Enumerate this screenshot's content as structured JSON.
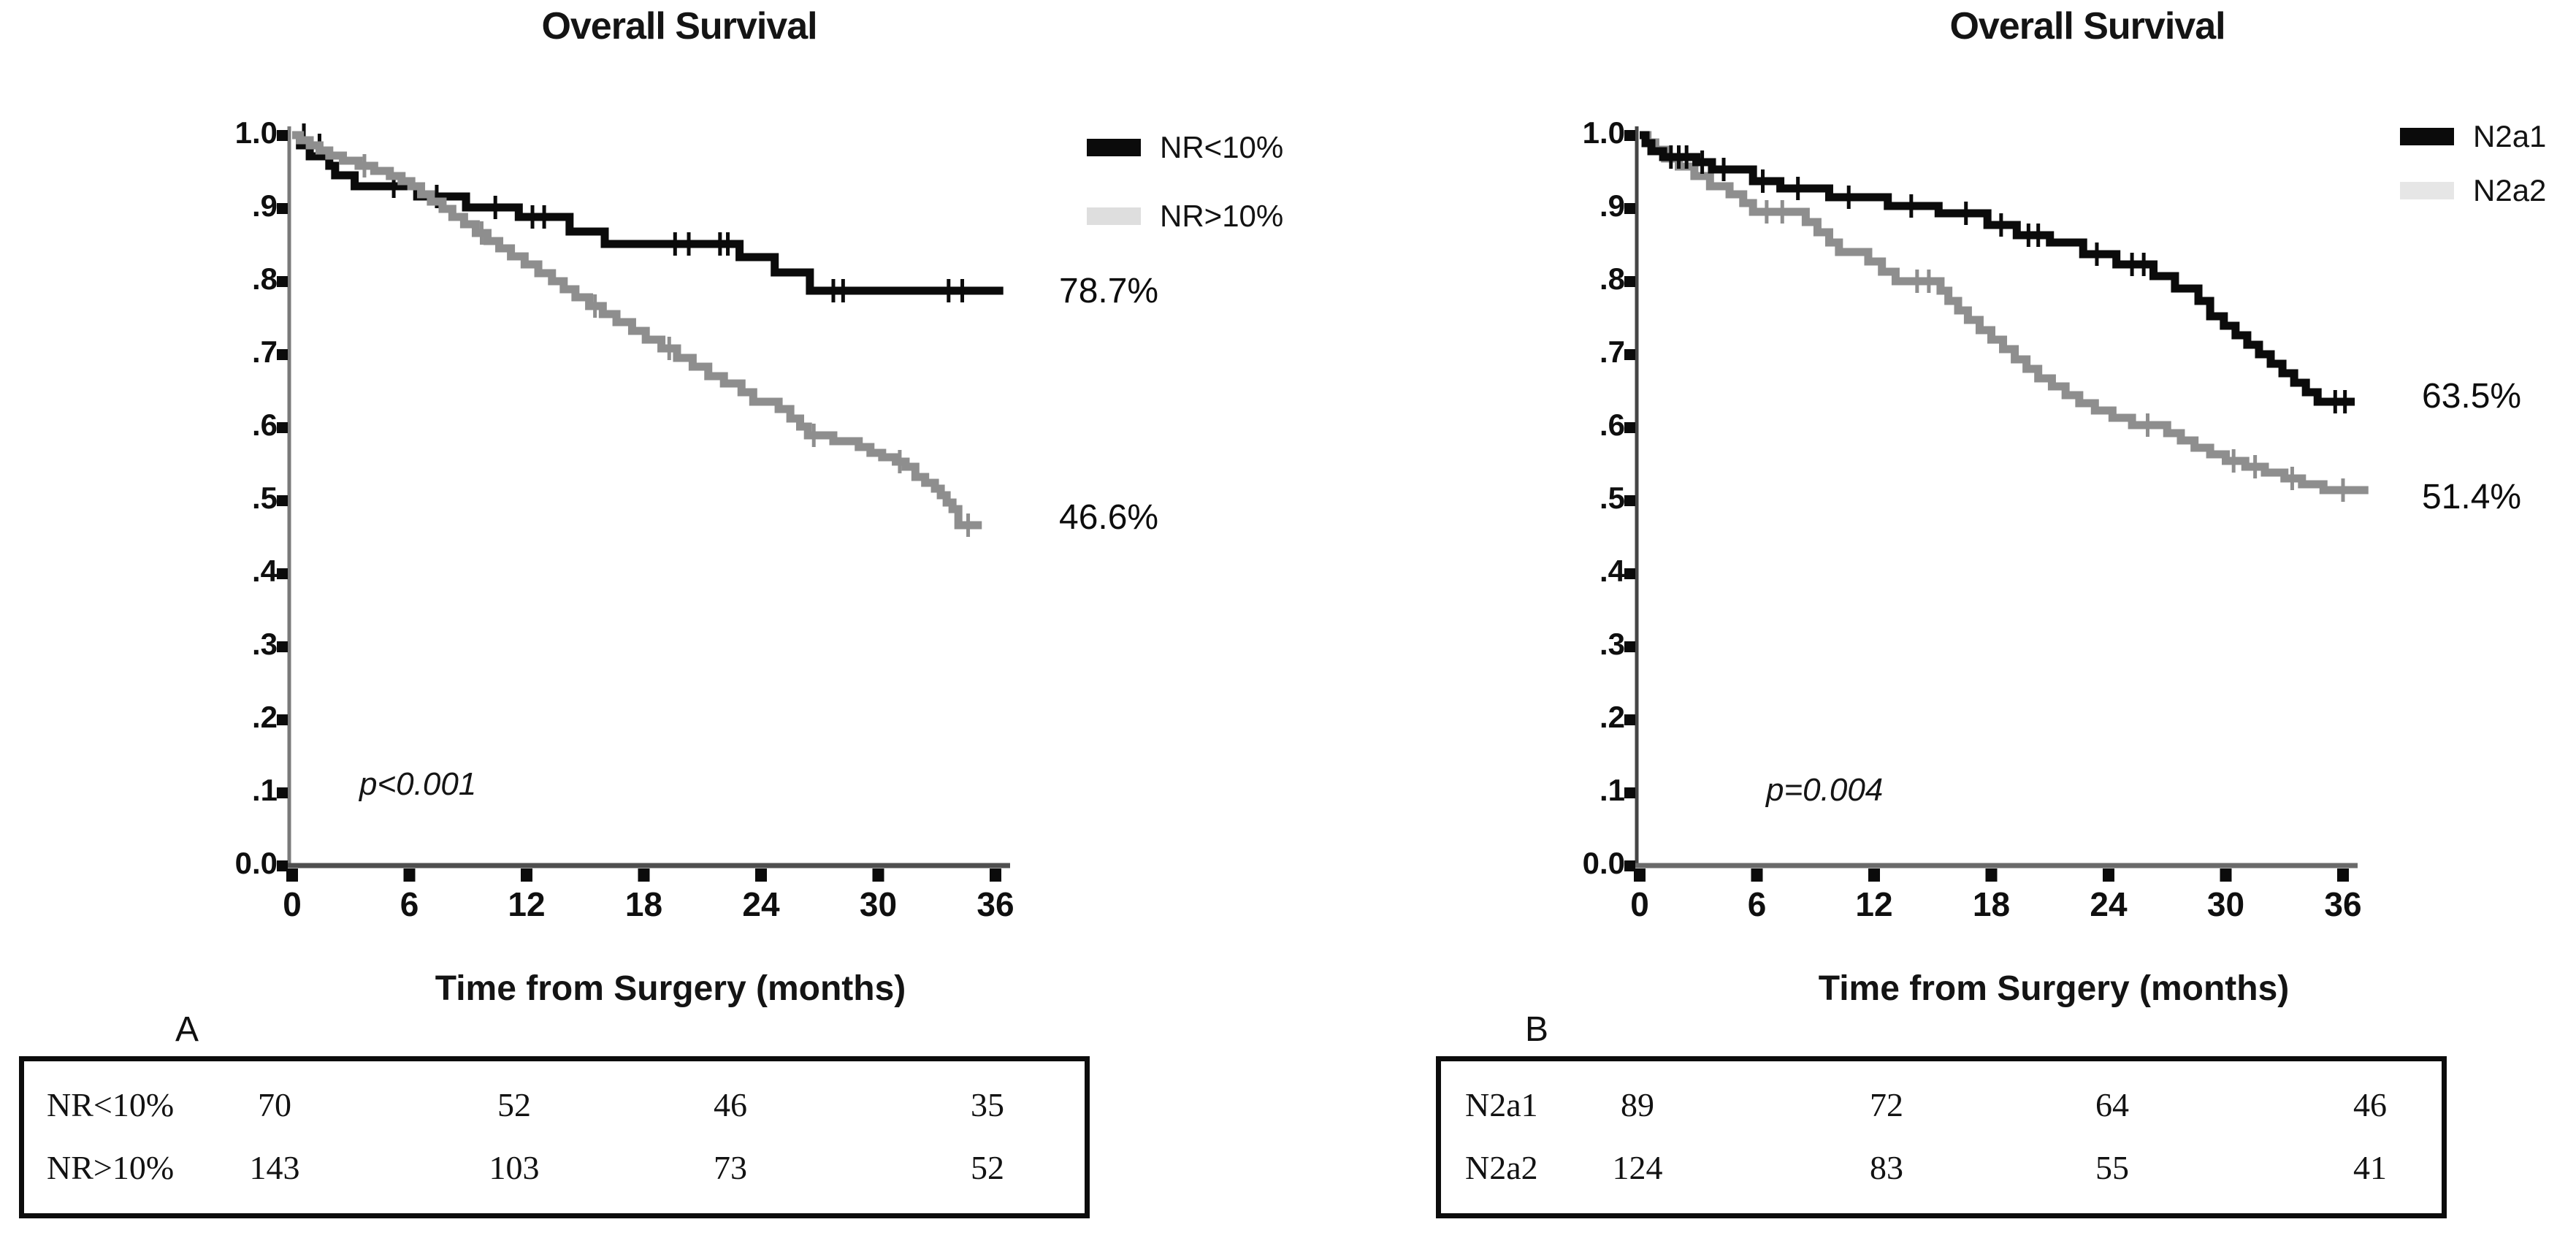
{
  "chart_data": [
    {
      "type": "line",
      "chart_style": "kaplan-meier-step",
      "panel_letter": "A",
      "title": "Overall Survival",
      "xlabel": "Time from Surgery (months)",
      "x_ticks": [
        0,
        6,
        12,
        18,
        24,
        30,
        36
      ],
      "y_tick_labels": [
        "1.0",
        ".9",
        ".8",
        ".7",
        ".6",
        ".5",
        ".4",
        ".3",
        ".2",
        ".1",
        "0.0"
      ],
      "xlim": [
        0,
        37
      ],
      "ylim": [
        0,
        1
      ],
      "grid": false,
      "legend_position": "top-right",
      "p_value": "p<0.001",
      "legend": [
        {
          "name": "NR<10%",
          "swatch_color": "#0b0b0b"
        },
        {
          "name": "NR>10%",
          "swatch_color": "#dedede"
        }
      ],
      "end_labels": [
        {
          "series": "NR<10%",
          "text": "78.7%",
          "value": 0.787
        },
        {
          "series": "NR>10%",
          "text": "46.6%",
          "value": 0.466
        }
      ],
      "series": [
        {
          "name": "NR<10%",
          "color": "#0b0b0b",
          "end_t": 36.4,
          "steps": [
            [
              0,
              1.0
            ],
            [
              0.4,
              0.986
            ],
            [
              0.9,
              0.971
            ],
            [
              1.9,
              0.958
            ],
            [
              2.2,
              0.945
            ],
            [
              3.2,
              0.93
            ],
            [
              6.4,
              0.916
            ],
            [
              8.9,
              0.901
            ],
            [
              11.6,
              0.888
            ],
            [
              14.2,
              0.868
            ],
            [
              16.0,
              0.851
            ],
            [
              22.9,
              0.833
            ],
            [
              24.7,
              0.812
            ],
            [
              26.5,
              0.787
            ]
          ],
          "censors": [
            [
              0.6,
              1.0
            ],
            [
              1.4,
              0.986
            ],
            [
              5.2,
              0.93
            ],
            [
              7.4,
              0.916
            ],
            [
              10.4,
              0.901
            ],
            [
              12.3,
              0.888
            ],
            [
              12.9,
              0.888
            ],
            [
              19.6,
              0.851
            ],
            [
              20.3,
              0.851
            ],
            [
              21.9,
              0.851
            ],
            [
              22.3,
              0.851
            ],
            [
              27.7,
              0.787
            ],
            [
              28.2,
              0.787
            ],
            [
              33.6,
              0.787
            ],
            [
              34.3,
              0.787
            ]
          ]
        },
        {
          "name": "NR>10%",
          "color": "#8e8e8e",
          "end_t": 35.3,
          "steps": [
            [
              0,
              1.0
            ],
            [
              0.4,
              0.993
            ],
            [
              0.9,
              0.986
            ],
            [
              1.4,
              0.979
            ],
            [
              1.9,
              0.972
            ],
            [
              2.6,
              0.965
            ],
            [
              3.4,
              0.958
            ],
            [
              4.2,
              0.951
            ],
            [
              5.0,
              0.944
            ],
            [
              5.6,
              0.937
            ],
            [
              6.1,
              0.93
            ],
            [
              6.6,
              0.919
            ],
            [
              7.1,
              0.909
            ],
            [
              7.7,
              0.899
            ],
            [
              8.2,
              0.888
            ],
            [
              8.8,
              0.878
            ],
            [
              9.4,
              0.866
            ],
            [
              10.0,
              0.855
            ],
            [
              10.6,
              0.845
            ],
            [
              11.2,
              0.834
            ],
            [
              11.9,
              0.823
            ],
            [
              12.6,
              0.811
            ],
            [
              13.3,
              0.8
            ],
            [
              13.9,
              0.789
            ],
            [
              14.5,
              0.778
            ],
            [
              15.2,
              0.766
            ],
            [
              15.9,
              0.755
            ],
            [
              16.6,
              0.744
            ],
            [
              17.4,
              0.732
            ],
            [
              18.1,
              0.72
            ],
            [
              18.9,
              0.708
            ],
            [
              19.7,
              0.695
            ],
            [
              20.5,
              0.683
            ],
            [
              21.3,
              0.67
            ],
            [
              22.1,
              0.66
            ],
            [
              23.0,
              0.648
            ],
            [
              23.6,
              0.635
            ],
            [
              24.9,
              0.625
            ],
            [
              25.5,
              0.612
            ],
            [
              26.0,
              0.601
            ],
            [
              26.4,
              0.589
            ],
            [
              27.7,
              0.581
            ],
            [
              29.0,
              0.573
            ],
            [
              29.6,
              0.565
            ],
            [
              30.2,
              0.559
            ],
            [
              30.9,
              0.553
            ],
            [
              31.4,
              0.546
            ],
            [
              31.9,
              0.532
            ],
            [
              32.4,
              0.524
            ],
            [
              32.9,
              0.516
            ],
            [
              33.2,
              0.507
            ],
            [
              33.5,
              0.497
            ],
            [
              33.8,
              0.488
            ],
            [
              34.1,
              0.466
            ]
          ],
          "censors": [
            [
              3.7,
              0.958
            ],
            [
              9.7,
              0.866
            ],
            [
              15.5,
              0.766
            ],
            [
              19.3,
              0.708
            ],
            [
              26.7,
              0.589
            ],
            [
              31.1,
              0.553
            ],
            [
              34.6,
              0.466
            ]
          ]
        }
      ],
      "risk_table": {
        "rows": [
          {
            "label": "NR<10%",
            "values": [
              70,
              52,
              46,
              35
            ]
          },
          {
            "label": "NR>10%",
            "values": [
              143,
              103,
              73,
              52
            ]
          }
        ]
      }
    },
    {
      "type": "line",
      "chart_style": "kaplan-meier-step",
      "panel_letter": "B",
      "title": "Overall Survival",
      "xlabel": "Time from Surgery (months)",
      "x_ticks": [
        0,
        6,
        12,
        18,
        24,
        30,
        36
      ],
      "y_tick_labels": [
        "1.0",
        ".9",
        ".8",
        ".7",
        ".6",
        ".5",
        ".4",
        ".3",
        ".2",
        ".1",
        "0.0"
      ],
      "xlim": [
        0,
        37
      ],
      "ylim": [
        0,
        1
      ],
      "grid": false,
      "legend_position": "top-right",
      "p_value": "p=0.004",
      "legend": [
        {
          "name": "N2a1",
          "swatch_color": "#0b0b0b"
        },
        {
          "name": "N2a2",
          "swatch_color": "#e6e6e6"
        }
      ],
      "end_labels": [
        {
          "series": "N2a1",
          "text": "63.5%",
          "value": 0.635
        },
        {
          "series": "N2a2",
          "text": "51.4%",
          "value": 0.514
        }
      ],
      "series": [
        {
          "name": "N2a1",
          "color": "#0b0b0b",
          "end_t": 36.6,
          "steps": [
            [
              0,
              1.0
            ],
            [
              0.3,
              0.989
            ],
            [
              0.6,
              0.978
            ],
            [
              1.2,
              0.97
            ],
            [
              2.9,
              0.963
            ],
            [
              3.7,
              0.953
            ],
            [
              5.8,
              0.937
            ],
            [
              7.2,
              0.927
            ],
            [
              9.7,
              0.915
            ],
            [
              12.7,
              0.903
            ],
            [
              15.3,
              0.893
            ],
            [
              17.8,
              0.877
            ],
            [
              19.3,
              0.863
            ],
            [
              21.0,
              0.853
            ],
            [
              22.7,
              0.837
            ],
            [
              24.4,
              0.823
            ],
            [
              26.3,
              0.807
            ],
            [
              27.4,
              0.79
            ],
            [
              28.6,
              0.773
            ],
            [
              29.2,
              0.752
            ],
            [
              29.9,
              0.739
            ],
            [
              30.5,
              0.726
            ],
            [
              31.1,
              0.713
            ],
            [
              31.7,
              0.7
            ],
            [
              32.3,
              0.687
            ],
            [
              32.9,
              0.674
            ],
            [
              33.5,
              0.661
            ],
            [
              34.1,
              0.648
            ],
            [
              34.7,
              0.635
            ]
          ],
          "censors": [
            [
              1.6,
              0.97
            ],
            [
              2.0,
              0.97
            ],
            [
              2.4,
              0.97
            ],
            [
              3.2,
              0.963
            ],
            [
              4.3,
              0.953
            ],
            [
              6.3,
              0.937
            ],
            [
              8.1,
              0.927
            ],
            [
              10.7,
              0.915
            ],
            [
              13.9,
              0.903
            ],
            [
              16.7,
              0.893
            ],
            [
              18.5,
              0.877
            ],
            [
              19.9,
              0.863
            ],
            [
              20.4,
              0.863
            ],
            [
              23.4,
              0.837
            ],
            [
              25.2,
              0.823
            ],
            [
              25.8,
              0.823
            ],
            [
              35.6,
              0.635
            ],
            [
              36.1,
              0.635
            ]
          ]
        },
        {
          "name": "N2a2",
          "color": "#8e8e8e",
          "end_t": 37.3,
          "steps": [
            [
              0,
              1.0
            ],
            [
              0.4,
              0.99
            ],
            [
              0.8,
              0.98
            ],
            [
              1.3,
              0.968
            ],
            [
              2.0,
              0.957
            ],
            [
              2.8,
              0.944
            ],
            [
              3.6,
              0.93
            ],
            [
              4.6,
              0.919
            ],
            [
              5.3,
              0.907
            ],
            [
              5.8,
              0.895
            ],
            [
              8.5,
              0.881
            ],
            [
              9.1,
              0.867
            ],
            [
              9.7,
              0.853
            ],
            [
              10.2,
              0.84
            ],
            [
              11.7,
              0.827
            ],
            [
              12.4,
              0.813
            ],
            [
              13.1,
              0.8
            ],
            [
              15.4,
              0.787
            ],
            [
              15.8,
              0.773
            ],
            [
              16.3,
              0.76
            ],
            [
              16.8,
              0.747
            ],
            [
              17.4,
              0.733
            ],
            [
              18.0,
              0.72
            ],
            [
              18.6,
              0.707
            ],
            [
              19.2,
              0.693
            ],
            [
              19.8,
              0.68
            ],
            [
              20.4,
              0.667
            ],
            [
              21.1,
              0.656
            ],
            [
              21.8,
              0.644
            ],
            [
              22.5,
              0.633
            ],
            [
              23.3,
              0.623
            ],
            [
              24.2,
              0.613
            ],
            [
              25.2,
              0.603
            ],
            [
              27.0,
              0.592
            ],
            [
              27.7,
              0.582
            ],
            [
              28.4,
              0.572
            ],
            [
              29.2,
              0.563
            ],
            [
              30.0,
              0.554
            ],
            [
              31.0,
              0.546
            ],
            [
              32.0,
              0.538
            ],
            [
              33.0,
              0.53
            ],
            [
              33.9,
              0.522
            ],
            [
              35.0,
              0.514
            ]
          ],
          "censors": [
            [
              6.5,
              0.895
            ],
            [
              7.3,
              0.895
            ],
            [
              14.2,
              0.8
            ],
            [
              14.8,
              0.8
            ],
            [
              26.0,
              0.603
            ],
            [
              30.4,
              0.554
            ],
            [
              31.5,
              0.546
            ],
            [
              33.4,
              0.53
            ],
            [
              36.0,
              0.514
            ]
          ]
        }
      ],
      "risk_table": {
        "rows": [
          {
            "label": "N2a1",
            "values": [
              89,
              72,
              64,
              46
            ]
          },
          {
            "label": "N2a2",
            "values": [
              124,
              83,
              55,
              41
            ]
          }
        ]
      }
    }
  ]
}
